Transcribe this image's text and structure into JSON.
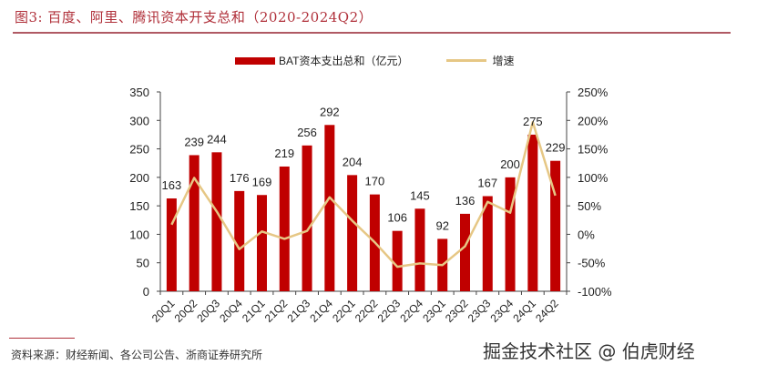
{
  "header": {
    "title": "图3:  百度、阿里、腾讯资本开支总和（2020-2024Q2）"
  },
  "footer": {
    "source": "资料来源：财经新闻、各公司公告、浙商证券研究所",
    "watermark": "掘金技术社区 @ 伯虎财经"
  },
  "colors": {
    "bar": "#c00000",
    "line": "#e6c785",
    "title": "#b0303a"
  },
  "chart_data": {
    "type": "bar",
    "title": "百度、阿里、腾讯资本开支总和（2020-2024Q2）",
    "categories": [
      "20Q1",
      "20Q2",
      "20Q3",
      "20Q4",
      "21Q1",
      "21Q2",
      "21Q3",
      "21Q4",
      "22Q1",
      "22Q2",
      "22Q3",
      "22Q4",
      "23Q1",
      "23Q2",
      "23Q3",
      "23Q4",
      "24Q1",
      "24Q2"
    ],
    "series": [
      {
        "name": "BAT资本支出总和（亿元）",
        "type": "bar",
        "axis": "left",
        "values": [
          163,
          239,
          244,
          176,
          169,
          219,
          256,
          292,
          204,
          170,
          106,
          145,
          92,
          136,
          167,
          200,
          275,
          229
        ]
      },
      {
        "name": "增速",
        "type": "line",
        "axis": "right",
        "values": [
          17,
          99,
          40,
          -26,
          5,
          -8,
          6,
          65,
          24,
          -14,
          -57,
          -51,
          -54,
          -21,
          57,
          38,
          197,
          68
        ]
      }
    ],
    "left_axis": {
      "ylim": [
        0,
        350
      ],
      "ticks": [
        "0",
        "50",
        "100",
        "150",
        "200",
        "250",
        "300",
        "350"
      ]
    },
    "right_axis": {
      "ylim": [
        -100,
        250
      ],
      "ticks": [
        "-100%",
        "-50%",
        "0%",
        "50%",
        "100%",
        "150%",
        "200%",
        "250%"
      ]
    },
    "legend": {
      "position": "top",
      "entries": [
        "BAT资本支出总和（亿元）",
        "增速"
      ]
    },
    "grid": false
  }
}
